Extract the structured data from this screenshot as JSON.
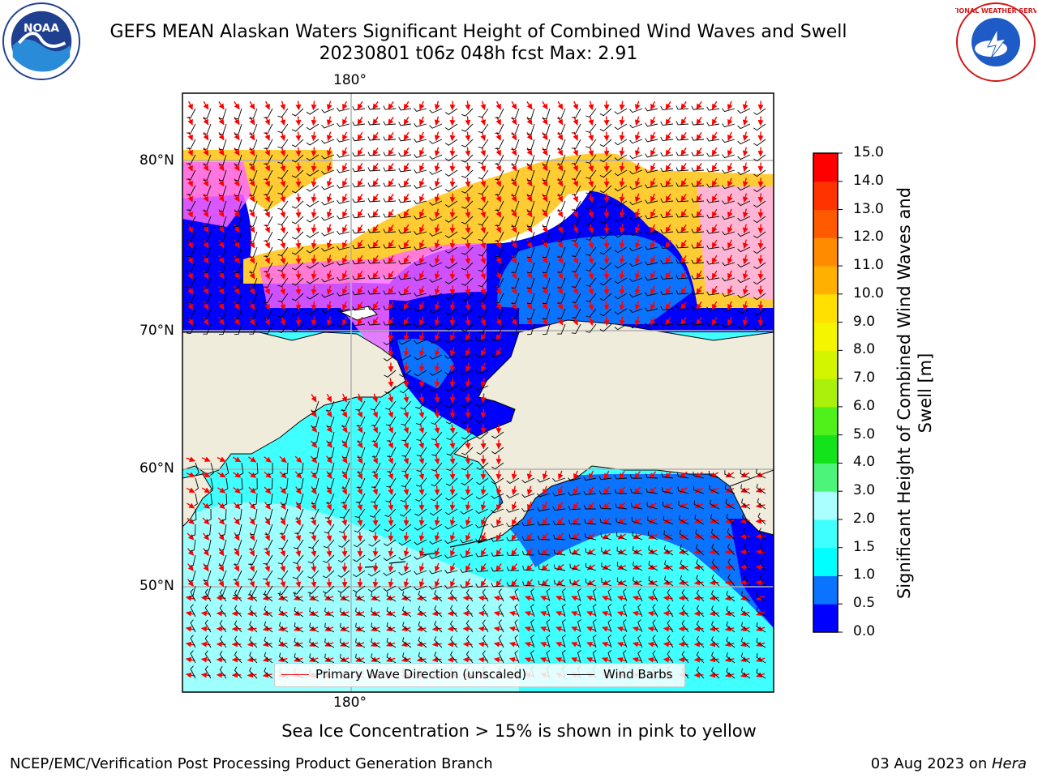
{
  "header": {
    "title_line1": "GEFS MEAN Alaskan Waters Significant Height of Combined Wind Waves and Swell",
    "title_line2": "20230801 t06z 048h fcst   Max: 2.91",
    "left_logo_text": "NOAA",
    "right_logo_text": "NATIONAL WEATHER SERVICE"
  },
  "map": {
    "lon_label_top": "180°",
    "lon_label_bottom": "180°",
    "lat_labels": [
      "80°N",
      "70°N",
      "60°N",
      "50°N"
    ],
    "legend": {
      "wave_label": "Primary Wave Direction (unscaled)",
      "barb_label": "Wind Barbs",
      "wave_color": "#ff0000",
      "barb_color": "#000000"
    },
    "land_color": "#efecdc",
    "ice_colors": [
      "#ff66ff",
      "#ffb3e6",
      "#ffcc33"
    ]
  },
  "colorbar": {
    "label": "Significant Height of Combined Wind Waves and Swell [m]",
    "ticks": [
      "0.0",
      "0.5",
      "1.0",
      "1.5",
      "2.0",
      "3.0",
      "4.0",
      "5.0",
      "6.0",
      "7.0",
      "8.0",
      "9.0",
      "10.0",
      "11.0",
      "12.0",
      "13.0",
      "14.0",
      "15.0"
    ],
    "colors": [
      "#0000ff",
      "#0a73ff",
      "#00ffff",
      "#40ffff",
      "#aaffff",
      "#4cf57a",
      "#12e31a",
      "#50f01a",
      "#aaf00a",
      "#d3f500",
      "#f5f500",
      "#ffe000",
      "#ffb000",
      "#ff8c00",
      "#ff5a00",
      "#ff3300",
      "#ff0000"
    ]
  },
  "caption": "Sea Ice Concentration > 15% is shown in pink to yellow",
  "footer": {
    "left": "NCEP/EMC/Verification Post Processing Product Generation Branch",
    "right_prefix": "03 Aug 2023 on ",
    "right_italic": "Hera"
  }
}
